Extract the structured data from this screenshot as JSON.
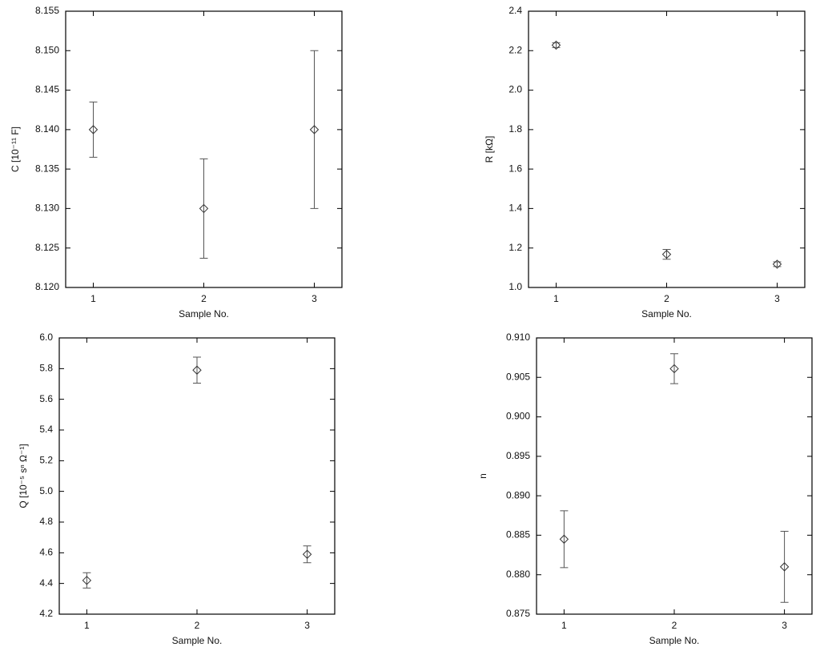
{
  "chart_data": [
    {
      "type": "scatter",
      "ylabel": "C [10⁻¹¹ F]",
      "xlabel": "Sample No.",
      "x": [
        1,
        2,
        3
      ],
      "values": [
        8.14,
        8.13,
        8.14
      ],
      "errors": [
        0.0035,
        0.0063,
        0.01
      ],
      "color": "#555555",
      "xlim": [
        0.75,
        3.25
      ],
      "xticks": [
        1,
        2,
        3
      ],
      "ylim": [
        8.12,
        8.155
      ],
      "yticks": [
        {
          "value": 8.12,
          "label": "8.120"
        },
        8.125,
        {
          "value": 8.13,
          "label": "8.130"
        },
        8.135,
        {
          "value": 8.14,
          "label": "8.140"
        },
        8.145,
        {
          "value": 8.15,
          "label": "8.150"
        },
        8.155
      ]
    },
    {
      "type": "scatter",
      "ylabel": "R [kΩ]",
      "xlabel": "Sample No.",
      "x": [
        1,
        2,
        3
      ],
      "values": [
        2.228,
        1.168,
        1.118
      ],
      "errors": [
        0.012,
        0.025,
        0.012
      ],
      "color": "#555555",
      "xlim": [
        0.75,
        3.25
      ],
      "xticks": [
        1,
        2,
        3
      ],
      "ylim": [
        1.0,
        2.4
      ],
      "yticks": [
        {
          "value": 1.0,
          "label": "1.0"
        },
        1.2,
        1.4,
        1.6,
        1.8,
        {
          "value": 2.0,
          "label": "2.0"
        },
        2.2,
        2.4
      ]
    },
    {
      "type": "scatter",
      "ylabel": "Q [10⁻⁵ sⁿ Ω⁻¹]",
      "xlabel": "Sample No.",
      "x": [
        1,
        2,
        3
      ],
      "values": [
        4.42,
        5.79,
        4.59
      ],
      "errors": [
        0.05,
        0.085,
        0.055
      ],
      "color": "#555555",
      "xlim": [
        0.75,
        3.25
      ],
      "xticks": [
        1,
        2,
        3
      ],
      "ylim": [
        4.2,
        6.0
      ],
      "yticks": [
        4.2,
        4.4,
        4.6,
        4.8,
        {
          "value": 5.0,
          "label": "5.0"
        },
        5.2,
        5.4,
        5.6,
        5.8,
        {
          "value": 6.0,
          "label": "6.0"
        }
      ]
    },
    {
      "type": "scatter",
      "ylabel": "n",
      "xlabel": "Sample No.",
      "x": [
        1,
        2,
        3
      ],
      "values": [
        0.8845,
        0.9061,
        0.881
      ],
      "errors": [
        0.0036,
        0.0019,
        0.0045
      ],
      "color": "#555555",
      "xlim": [
        0.75,
        3.25
      ],
      "xticks": [
        1,
        2,
        3
      ],
      "ylim": [
        0.875,
        0.91
      ],
      "yticks": [
        0.875,
        {
          "value": 0.88,
          "label": "0.880"
        },
        0.885,
        {
          "value": 0.89,
          "label": "0.890"
        },
        0.895,
        {
          "value": 0.9,
          "label": "0.900"
        },
        0.905,
        {
          "value": 0.91,
          "label": "0.910"
        }
      ]
    }
  ]
}
